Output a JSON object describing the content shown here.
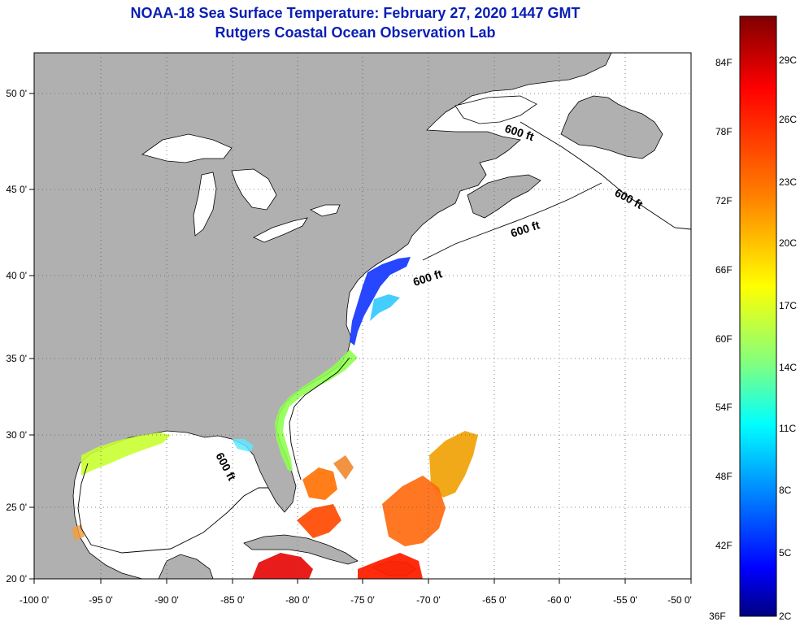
{
  "title": {
    "line1": "NOAA-18 Sea Surface Temperature:  February 27, 2020 1447 GMT",
    "line2": "Rutgers Coastal Ocean Observation Lab"
  },
  "map": {
    "lon_range": [
      -100,
      -50
    ],
    "lat_range": [
      20,
      52.5
    ],
    "lon_ticks": [
      "-100 0'",
      "-95 0'",
      "-90 0'",
      "-85 0'",
      "-80 0'",
      "-75 0'",
      "-70 0'",
      "-65 0'",
      "-60 0'",
      "-55 0'",
      "-50 0'"
    ],
    "lat_ticks": [
      "20 0'",
      "25 0'",
      "30 0'",
      "35 0'",
      "40 0'",
      "45 0'",
      "50 0'"
    ],
    "depth_labels": [
      "600 ft",
      "600 ft",
      "600 ft",
      "600 ft",
      "600 ft"
    ],
    "land_color": "#b0b0b0",
    "ocean_color": "#ffffff",
    "grid": "dotted"
  },
  "colorbar": {
    "fahrenheit": [
      "84F",
      "78F",
      "72F",
      "66F",
      "60F",
      "54F",
      "48F",
      "42F",
      "36F"
    ],
    "celsius": [
      "29C",
      "26C",
      "23C",
      "20C",
      "17C",
      "14C",
      "11C",
      "8C",
      "5C",
      "2C"
    ],
    "colors": [
      "#800000",
      "#ff0000",
      "#ff8000",
      "#ffff00",
      "#80ff80",
      "#00ffff",
      "#0080ff",
      "#0000ff",
      "#000080"
    ]
  }
}
